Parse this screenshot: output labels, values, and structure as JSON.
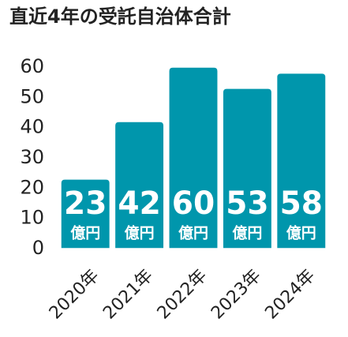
{
  "chart_data": {
    "type": "bar",
    "title": "直近4年の受託自治体合計",
    "categories": [
      "2020年",
      "2021年",
      "2022年",
      "2023年",
      "2024年"
    ],
    "values": [
      23,
      42,
      60,
      53,
      58
    ],
    "value_unit": "億円",
    "color": "#0096ac",
    "ylim": [
      0,
      60
    ],
    "yticks": [
      0,
      10,
      20,
      30,
      40,
      50,
      60
    ],
    "grid": false
  }
}
